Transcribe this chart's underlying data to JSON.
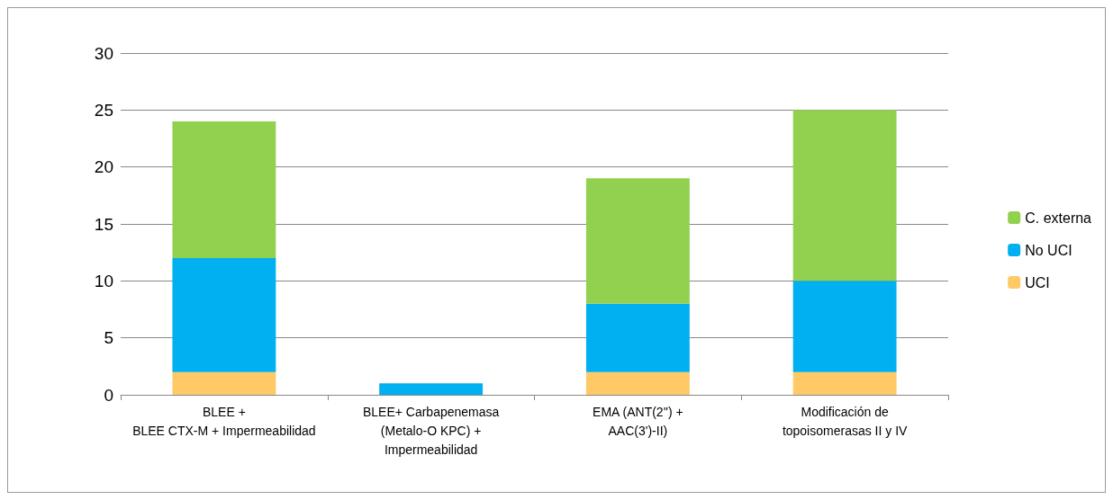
{
  "chart_data": {
    "type": "bar",
    "stacked": true,
    "categories": [
      "BLEE +\nBLEE CTX-M + Impermeabilidad",
      "BLEE+ Carbapenemasa\n(Metalo-O KPC) +\nImpermeabilidad",
      "EMA (ANT(2'') +\nAAC(3')-II)",
      "Modificación de\ntopoisomerasas II y IV"
    ],
    "series": [
      {
        "name": "UCI",
        "color": "#ffc966",
        "values": [
          2,
          0,
          2,
          2
        ]
      },
      {
        "name": "No UCI",
        "color": "#00b0f0",
        "values": [
          10,
          1,
          6,
          8
        ]
      },
      {
        "name": "C. externa",
        "color": "#92d050",
        "values": [
          12,
          0,
          11,
          15
        ]
      }
    ],
    "ylim": [
      0,
      30
    ],
    "yticks": [
      0,
      5,
      10,
      15,
      20,
      25,
      30
    ],
    "grid": "y",
    "legend": "right"
  }
}
